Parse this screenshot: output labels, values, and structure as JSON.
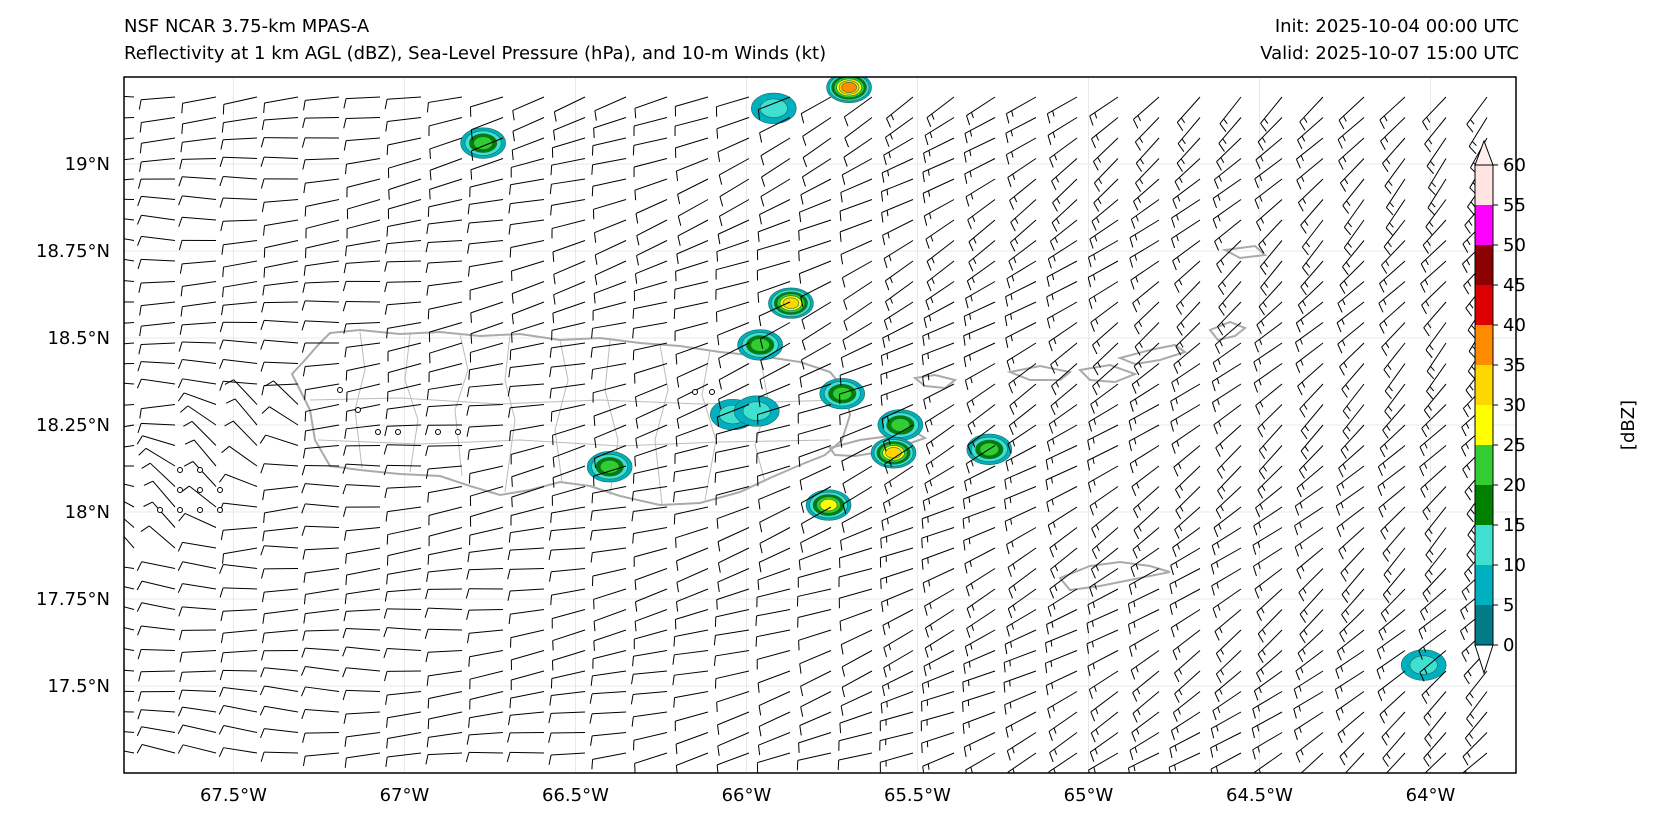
{
  "header": {
    "model": "NSF NCAR 3.75-km MPAS-A",
    "fields": "Reflectivity at 1 km AGL (dBZ), Sea-Level Pressure (hPa), and 10-m Winds (kt)",
    "init": "Init: 2025-10-04 00:00 UTC",
    "valid": "Valid: 2025-10-07 15:00 UTC"
  },
  "map": {
    "lon_range": [
      -67.82,
      -63.75
    ],
    "lat_range": [
      17.25,
      19.25
    ],
    "lon_ticks": [
      {
        "value": -67.5,
        "label": "67.5°W"
      },
      {
        "value": -67.0,
        "label": "67°W"
      },
      {
        "value": -66.5,
        "label": "66.5°W"
      },
      {
        "value": -66.0,
        "label": "66°W"
      },
      {
        "value": -65.5,
        "label": "65.5°W"
      },
      {
        "value": -65.0,
        "label": "65°W"
      },
      {
        "value": -64.5,
        "label": "64.5°W"
      },
      {
        "value": -64.0,
        "label": "64°W"
      }
    ],
    "lat_ticks": [
      {
        "value": 19.0,
        "label": "19°N"
      },
      {
        "value": 18.75,
        "label": "18.75°N"
      },
      {
        "value": 18.5,
        "label": "18.5°N"
      },
      {
        "value": 18.25,
        "label": "18.25°N"
      },
      {
        "value": 18.0,
        "label": "18°N"
      },
      {
        "value": 17.75,
        "label": "17.75°N"
      },
      {
        "value": 17.5,
        "label": "17.5°N"
      }
    ],
    "coastline_color": "#aaaaaa",
    "barb_color": "#000000",
    "reflectivity_cells": [
      {
        "name": "cell-n-of-aguadilla",
        "lon": -66.77,
        "lat": 19.06,
        "peak_dbz": 20
      },
      {
        "name": "cell-north-top",
        "lon": -65.7,
        "lat": 19.22,
        "peak_dbz": 35
      },
      {
        "name": "cell-north-small",
        "lon": -65.92,
        "lat": 19.16,
        "peak_dbz": 10
      },
      {
        "name": "cell-n-of-san-juan",
        "lon": -65.87,
        "lat": 18.6,
        "peak_dbz": 30
      },
      {
        "name": "cell-offshore-north",
        "lon": -65.96,
        "lat": 18.48,
        "peak_dbz": 20
      },
      {
        "name": "cell-fajardo",
        "lon": -65.72,
        "lat": 18.34,
        "peak_dbz": 20
      },
      {
        "name": "cell-vieques-north",
        "lon": -65.55,
        "lat": 18.25,
        "peak_dbz": 20
      },
      {
        "name": "cell-vieques-south",
        "lon": -65.57,
        "lat": 18.17,
        "peak_dbz": 30
      },
      {
        "name": "cell-east",
        "lon": -65.29,
        "lat": 18.18,
        "peak_dbz": 20
      },
      {
        "name": "cell-south-central",
        "lon": -66.4,
        "lat": 18.13,
        "peak_dbz": 20
      },
      {
        "name": "cell-south-east",
        "lon": -65.76,
        "lat": 18.02,
        "peak_dbz": 25
      },
      {
        "name": "cell-interior-a",
        "lon": -66.04,
        "lat": 18.28,
        "peak_dbz": 10
      },
      {
        "name": "cell-interior-b",
        "lon": -65.97,
        "lat": 18.29,
        "peak_dbz": 10
      },
      {
        "name": "cell-far-east",
        "lon": -64.02,
        "lat": 17.56,
        "peak_dbz": 10
      }
    ]
  },
  "colorbar": {
    "label": "[dBZ]",
    "levels": [
      0,
      5,
      10,
      15,
      20,
      25,
      30,
      35,
      40,
      45,
      50,
      55,
      60
    ],
    "tick_labels": [
      "0",
      "5",
      "10",
      "15",
      "20",
      "25",
      "30",
      "35",
      "40",
      "45",
      "50",
      "55",
      "60"
    ],
    "colors": [
      "#007c89",
      "#00b0c0",
      "#40e0d0",
      "#008000",
      "#32cd32",
      "#ffff00",
      "#ffd700",
      "#ff8c00",
      "#dc0000",
      "#8b0000",
      "#ff00ff",
      "#ffe4e1"
    ],
    "under_color": "#ffffff",
    "over_color": "#ffeeee"
  }
}
